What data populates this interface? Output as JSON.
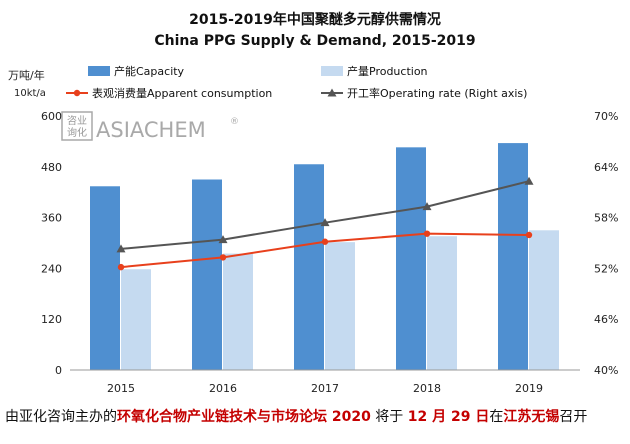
{
  "chart_data": {
    "type": "bar",
    "title": "2015-2019年中国聚醚多元醇供需情况",
    "subtitle": "China PPG Supply & Demand, 2015-2019",
    "ylabel": "万吨/年",
    "ylabel2": "10kt/a",
    "categories": [
      "2015",
      "2016",
      "2017",
      "2018",
      "2019"
    ],
    "ylim": [
      0,
      600
    ],
    "yticks": [
      "0",
      "120",
      "240",
      "360",
      "480",
      "600"
    ],
    "y2lim": [
      40,
      70
    ],
    "y2ticks": [
      "40%",
      "46%",
      "52%",
      "58%",
      "64%",
      "70%"
    ],
    "series": [
      {
        "name": "产能Capacity",
        "type": "bar",
        "color": "#4f8fd0",
        "values": [
          434,
          450,
          486,
          526,
          536
        ]
      },
      {
        "name": "产量Production",
        "type": "bar",
        "color": "#c5daf0",
        "values": [
          238,
          275,
          302,
          316,
          330
        ]
      },
      {
        "name": "表观消费量Apparent consumption",
        "type": "line",
        "color": "#e8401c",
        "values": [
          243,
          266,
          303,
          322,
          319
        ]
      },
      {
        "name": "开工率Operating rate (Right axis)",
        "type": "line",
        "axis": "right",
        "color": "#555555",
        "values": [
          54.3,
          55.4,
          57.4,
          59.3,
          62.3
        ]
      }
    ],
    "legend_position": "top",
    "grid": false
  },
  "watermark": {
    "seal": "咨业询化",
    "brand": "ASIACHEM",
    "mark": "®"
  },
  "footer": {
    "parts": [
      {
        "text": "由亚化咨询主办的",
        "highlight": false
      },
      {
        "text": "环氧化合物产业链技术与市场论坛 2020",
        "highlight": true
      },
      {
        "text": " 将于 ",
        "highlight": false
      },
      {
        "text": "12 月 29 日",
        "highlight": true
      },
      {
        "text": "在",
        "highlight": false
      },
      {
        "text": "江苏无锡",
        "highlight": true
      },
      {
        "text": "召开",
        "highlight": false
      }
    ]
  }
}
